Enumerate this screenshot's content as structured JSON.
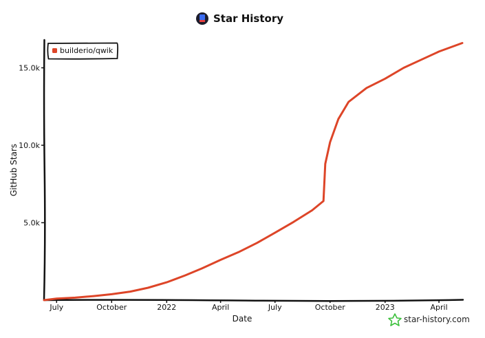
{
  "header": {
    "title": "Star History",
    "logo_icon": "star-history-logo-icon"
  },
  "watermark": {
    "text": "star-history.com",
    "icon": "star-outline-icon",
    "icon_color": "#3bbf3b"
  },
  "colors": {
    "series": "#dd4528",
    "axis": "#111111",
    "background": "#ffffff"
  },
  "chart_data": {
    "type": "line",
    "xlabel": "Date",
    "ylabel": "GitHub Stars",
    "x_tick_labels": [
      "July",
      "October",
      "2022",
      "April",
      "July",
      "October",
      "2023",
      "April"
    ],
    "x_ticks": [
      "2021-07-01",
      "2021-10-01",
      "2022-01-01",
      "2022-04-01",
      "2022-07-01",
      "2022-10-01",
      "2023-01-01",
      "2023-04-01"
    ],
    "xlim": [
      "2021-06-10",
      "2023-05-10"
    ],
    "y_tick_labels": [
      "5.0k",
      "10.0k",
      "15.0k"
    ],
    "y_ticks": [
      5000,
      10000,
      15000
    ],
    "ylim": [
      0,
      16800
    ],
    "grid": false,
    "legend_position": "top-left",
    "series": [
      {
        "name": "builderio/qwik",
        "color": "#dd4528",
        "points": [
          {
            "x": "2021-06-10",
            "y": 0
          },
          {
            "x": "2021-07-01",
            "y": 100
          },
          {
            "x": "2021-08-01",
            "y": 160
          },
          {
            "x": "2021-09-01",
            "y": 260
          },
          {
            "x": "2021-10-01",
            "y": 380
          },
          {
            "x": "2021-11-01",
            "y": 550
          },
          {
            "x": "2021-12-01",
            "y": 800
          },
          {
            "x": "2022-01-01",
            "y": 1150
          },
          {
            "x": "2022-02-01",
            "y": 1600
          },
          {
            "x": "2022-03-01",
            "y": 2050
          },
          {
            "x": "2022-04-01",
            "y": 2600
          },
          {
            "x": "2022-05-01",
            "y": 3100
          },
          {
            "x": "2022-06-01",
            "y": 3700
          },
          {
            "x": "2022-07-01",
            "y": 4350
          },
          {
            "x": "2022-08-01",
            "y": 5050
          },
          {
            "x": "2022-09-01",
            "y": 5800
          },
          {
            "x": "2022-09-20",
            "y": 6400
          },
          {
            "x": "2022-09-23",
            "y": 8800
          },
          {
            "x": "2022-10-01",
            "y": 10200
          },
          {
            "x": "2022-10-15",
            "y": 11700
          },
          {
            "x": "2022-11-01",
            "y": 12800
          },
          {
            "x": "2022-12-01",
            "y": 13700
          },
          {
            "x": "2023-01-01",
            "y": 14300
          },
          {
            "x": "2023-02-01",
            "y": 15000
          },
          {
            "x": "2023-03-01",
            "y": 15500
          },
          {
            "x": "2023-04-01",
            "y": 16050
          },
          {
            "x": "2023-05-10",
            "y": 16600
          }
        ]
      }
    ]
  }
}
